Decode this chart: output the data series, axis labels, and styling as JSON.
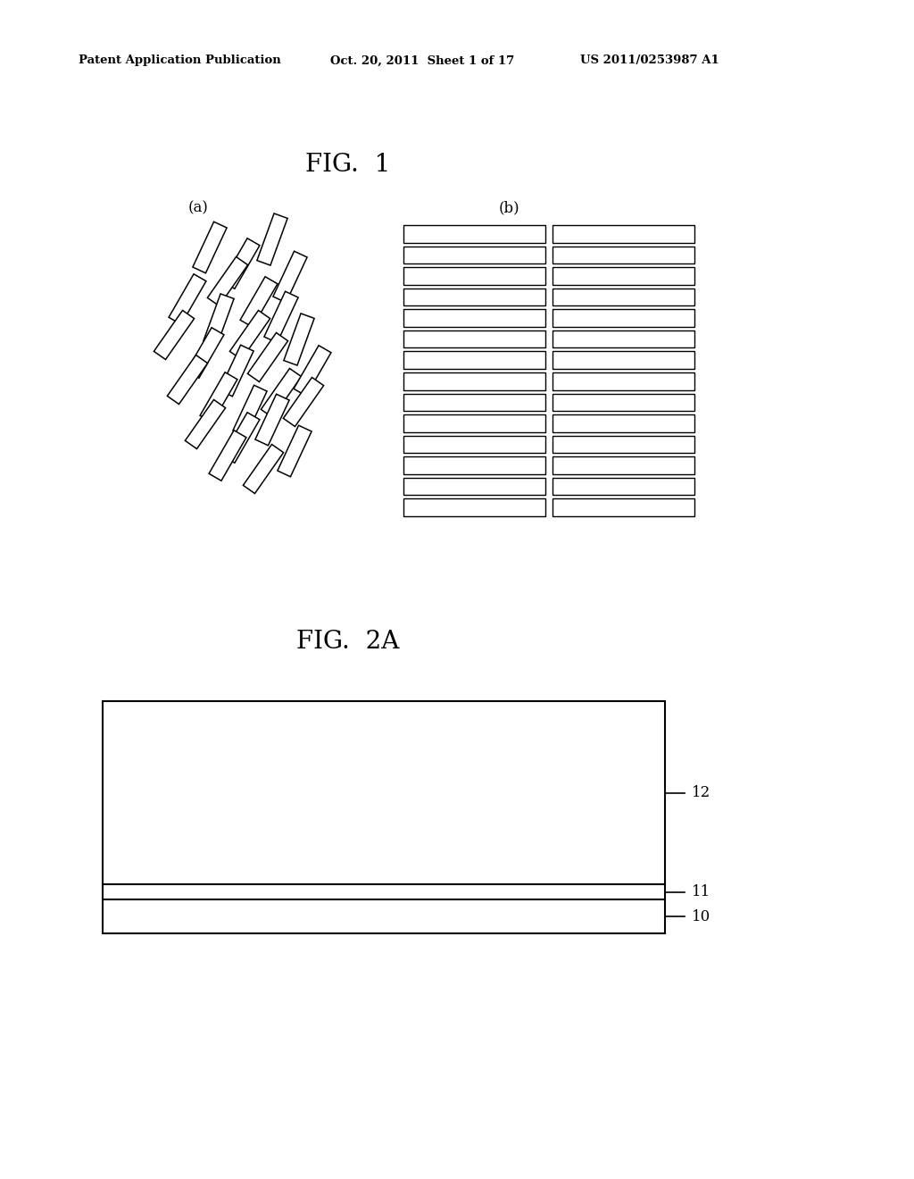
{
  "bg_color": "#ffffff",
  "header_left": "Patent Application Publication",
  "header_mid": "Oct. 20, 2011  Sheet 1 of 17",
  "header_right": "US 2011/0253987 A1",
  "fig1_title": "FIG.  1",
  "fig1_label_a": "(a)",
  "fig1_label_b": "(b)",
  "fig2a_title": "FIG.  2A",
  "layer_labels": [
    "12",
    "11",
    "10"
  ]
}
